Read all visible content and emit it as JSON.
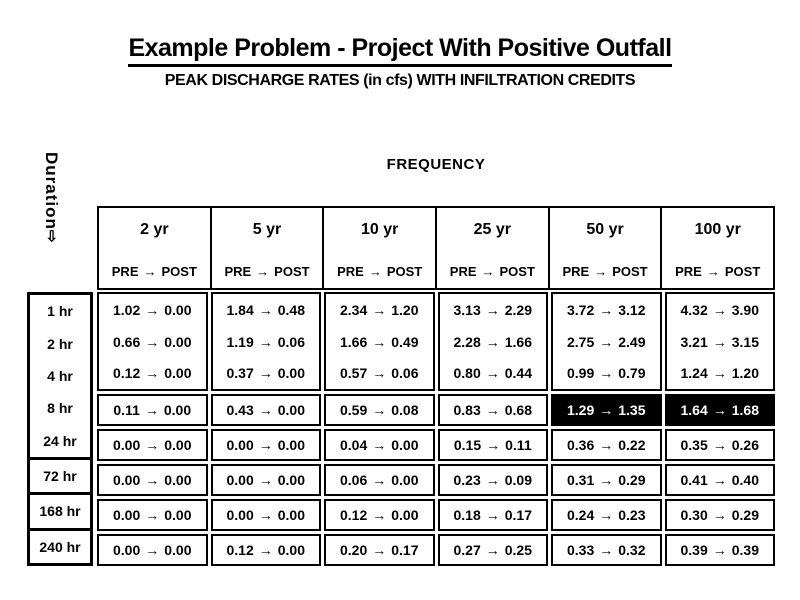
{
  "title": "Example Problem - Project With Positive Outfall",
  "subtitle": "PEAK DISCHARGE RATES (in cfs) WITH INFILTRATION CREDITS",
  "table": {
    "frequency_label": "FREQUENCY",
    "duration_label": "Duration",
    "duration_arrow": "⇨",
    "arrow": "→",
    "pre_label": "PRE",
    "post_label": "POST",
    "columns": [
      "2 yr",
      "5 yr",
      "10 yr",
      "25 yr",
      "50 yr",
      "100 yr"
    ],
    "rows": [
      {
        "duration": "1 hr",
        "cells": [
          {
            "pre": "1.02",
            "post": "0.00"
          },
          {
            "pre": "1.84",
            "post": "0.48"
          },
          {
            "pre": "2.34",
            "post": "1.20"
          },
          {
            "pre": "3.13",
            "post": "2.29"
          },
          {
            "pre": "3.72",
            "post": "3.12"
          },
          {
            "pre": "4.32",
            "post": "3.90"
          }
        ]
      },
      {
        "duration": "2 hr",
        "cells": [
          {
            "pre": "0.66",
            "post": "0.00"
          },
          {
            "pre": "1.19",
            "post": "0.06"
          },
          {
            "pre": "1.66",
            "post": "0.49"
          },
          {
            "pre": "2.28",
            "post": "1.66"
          },
          {
            "pre": "2.75",
            "post": "2.49"
          },
          {
            "pre": "3.21",
            "post": "3.15"
          }
        ]
      },
      {
        "duration": "4 hr",
        "cells": [
          {
            "pre": "0.12",
            "post": "0.00"
          },
          {
            "pre": "0.37",
            "post": "0.00"
          },
          {
            "pre": "0.57",
            "post": "0.06"
          },
          {
            "pre": "0.80",
            "post": "0.44"
          },
          {
            "pre": "0.99",
            "post": "0.79"
          },
          {
            "pre": "1.24",
            "post": "1.20"
          }
        ]
      },
      {
        "duration": "8 hr",
        "cells": [
          {
            "pre": "0.11",
            "post": "0.00"
          },
          {
            "pre": "0.43",
            "post": "0.00"
          },
          {
            "pre": "0.59",
            "post": "0.08"
          },
          {
            "pre": "0.83",
            "post": "0.68"
          },
          {
            "pre": "1.29",
            "post": "1.35",
            "highlight": true
          },
          {
            "pre": "1.64",
            "post": "1.68",
            "highlight": true
          }
        ]
      },
      {
        "duration": "24 hr",
        "cells": [
          {
            "pre": "0.00",
            "post": "0.00"
          },
          {
            "pre": "0.00",
            "post": "0.00"
          },
          {
            "pre": "0.04",
            "post": "0.00"
          },
          {
            "pre": "0.15",
            "post": "0.11"
          },
          {
            "pre": "0.36",
            "post": "0.22"
          },
          {
            "pre": "0.35",
            "post": "0.26"
          }
        ]
      },
      {
        "duration": "72 hr",
        "cells": [
          {
            "pre": "0.00",
            "post": "0.00"
          },
          {
            "pre": "0.00",
            "post": "0.00"
          },
          {
            "pre": "0.06",
            "post": "0.00"
          },
          {
            "pre": "0.23",
            "post": "0.09"
          },
          {
            "pre": "0.31",
            "post": "0.29"
          },
          {
            "pre": "0.41",
            "post": "0.40"
          }
        ]
      },
      {
        "duration": "168 hr",
        "cells": [
          {
            "pre": "0.00",
            "post": "0.00"
          },
          {
            "pre": "0.00",
            "post": "0.00"
          },
          {
            "pre": "0.12",
            "post": "0.00"
          },
          {
            "pre": "0.18",
            "post": "0.17"
          },
          {
            "pre": "0.24",
            "post": "0.23"
          },
          {
            "pre": "0.30",
            "post": "0.29"
          }
        ]
      },
      {
        "duration": "240 hr",
        "cells": [
          {
            "pre": "0.00",
            "post": "0.00"
          },
          {
            "pre": "0.12",
            "post": "0.00"
          },
          {
            "pre": "0.20",
            "post": "0.17"
          },
          {
            "pre": "0.27",
            "post": "0.25"
          },
          {
            "pre": "0.33",
            "post": "0.32"
          },
          {
            "pre": "0.39",
            "post": "0.39"
          }
        ]
      }
    ]
  },
  "colors": {
    "background": "#ffffff",
    "text": "#000000",
    "highlight_bg": "#000000",
    "highlight_text": "#ffffff"
  }
}
